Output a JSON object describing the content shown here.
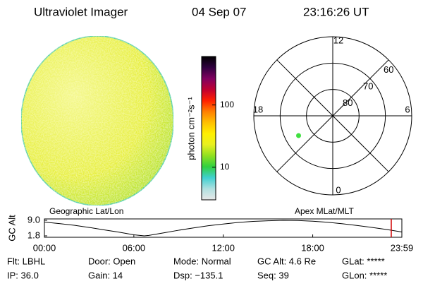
{
  "header": {
    "title": "Ultraviolet Imager",
    "date": "04 Sep 07",
    "time": "23:16:26 UT"
  },
  "image_labels": {
    "left": "Geographic Lat/Lon",
    "right": "Apex MLat/MLT"
  },
  "chart_data": [
    {
      "type": "colorbar",
      "label": "photon cm⁻²s⁻¹",
      "log_scale": true,
      "ylim": [
        3,
        600
      ],
      "yticks": [
        10,
        100
      ],
      "colors": [
        "#e8e8e8",
        "#b0e0e0",
        "#40d0d0",
        "#30d040",
        "#90e020",
        "#e8f020",
        "#fff000",
        "#ffc000",
        "#ff8000",
        "#ff2000",
        "#c00030",
        "#800060",
        "#300040",
        "#000000"
      ]
    },
    {
      "type": "polar",
      "rlim": [
        90,
        60
      ],
      "rticks": [
        80,
        70,
        60
      ],
      "thetaticks": [
        0,
        6,
        12,
        18
      ],
      "theta_period": 24,
      "points": [
        {
          "mlt": 20,
          "mlat": 75,
          "color": "#40e040"
        }
      ]
    },
    {
      "type": "line",
      "y_label": "GC Alt",
      "color": "#000000",
      "x": [
        0,
        1,
        2,
        3,
        4,
        5,
        6,
        6.7,
        7,
        8,
        9,
        10,
        11,
        12,
        13,
        14,
        15,
        16,
        17,
        18,
        19,
        20,
        21,
        22,
        23,
        23.98
      ],
      "values": [
        8.2,
        7.5,
        6.7,
        5.7,
        4.6,
        3.5,
        2.3,
        1.8,
        2.0,
        3.2,
        4.4,
        5.5,
        6.5,
        7.3,
        8.0,
        8.5,
        8.8,
        9.0,
        8.9,
        8.6,
        8.1,
        7.4,
        6.6,
        5.7,
        4.7,
        3.6
      ],
      "xlim": [
        0,
        23.98
      ],
      "xticks": [
        {
          "value": 0,
          "label": "00:00"
        },
        {
          "value": 6,
          "label": "06:00"
        },
        {
          "value": 12,
          "label": "12:00"
        },
        {
          "value": 18,
          "label": "18:00"
        },
        {
          "value": 23.98,
          "label": "23:59"
        }
      ],
      "ylim": [
        1.8,
        9
      ],
      "yticks": [
        {
          "value": 9,
          "label": "9.0"
        },
        1.8
      ],
      "marker_x": 23.27,
      "marker_color": "#d00000"
    }
  ],
  "footer": {
    "rows": [
      [
        "Flt: LBHL",
        "Door: Open",
        "Mode: Normal",
        "GC Alt: 4.6 Re",
        "GLat: *****"
      ],
      [
        "IP: 36.0",
        "Gain: 14",
        "Dsp: −135.1",
        "Seq: 39",
        "GLon: *****"
      ]
    ]
  }
}
